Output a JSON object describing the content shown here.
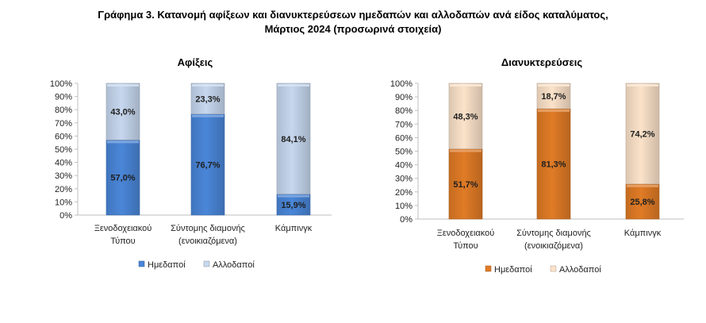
{
  "title": {
    "line1": "Γράφημα 3. Κατανομή αφίξεων και διανυκτερεύσεων ημεδαπών και αλλοδαπών ανά είδος καταλύματος,",
    "line2": "Μάρτιος 2024 (προσωρινά στοιχεία)"
  },
  "chart_data": [
    {
      "type": "bar",
      "stacked": true,
      "title": "Αφίξεις",
      "categories": [
        [
          "Ξενοδοχειακού",
          "Τύπου"
        ],
        [
          "Σύντομης διαμονής",
          "(ενοικιαζόμενα)"
        ],
        [
          "Κάμπινγκ"
        ]
      ],
      "yticks": [
        "0%",
        "10%",
        "20%",
        "30%",
        "40%",
        "50%",
        "60%",
        "70%",
        "80%",
        "90%",
        "100%"
      ],
      "ylim": [
        0,
        100
      ],
      "legend_position": "bottom",
      "series": [
        {
          "name": "Ημεδαποί",
          "values": [
            57.0,
            76.7,
            15.9
          ],
          "labels": [
            "57,0%",
            "76,7%",
            "15,9%"
          ],
          "color": "#4a86d8"
        },
        {
          "name": "Αλλοδαποί",
          "values": [
            43.0,
            23.3,
            84.1
          ],
          "labels": [
            "43,0%",
            "23,3%",
            "84,1%"
          ],
          "color": "#c6d7ee"
        }
      ]
    },
    {
      "type": "bar",
      "stacked": true,
      "title": "Διανυκτερεύσεις",
      "categories": [
        [
          "Ξενοδοχειακού",
          "Τύπου"
        ],
        [
          "Σύντομης διαμονής",
          "(ενοικιαζόμενα)"
        ],
        [
          "Κάμπινγκ"
        ]
      ],
      "yticks": [
        "0%",
        "10%",
        "20%",
        "30%",
        "40%",
        "50%",
        "60%",
        "70%",
        "80%",
        "90%",
        "100%"
      ],
      "ylim": [
        0,
        100
      ],
      "legend_position": "bottom",
      "series": [
        {
          "name": "Ημεδαποί",
          "values": [
            51.7,
            81.3,
            25.8
          ],
          "labels": [
            "51,7%",
            "81,3%",
            "25,8%"
          ],
          "color": "#e07b26"
        },
        {
          "name": "Αλλοδαποί",
          "values": [
            48.3,
            18.7,
            74.2
          ],
          "labels": [
            "48,3%",
            "18,7%",
            "74,2%"
          ],
          "color": "#fbe2c9"
        }
      ]
    }
  ]
}
